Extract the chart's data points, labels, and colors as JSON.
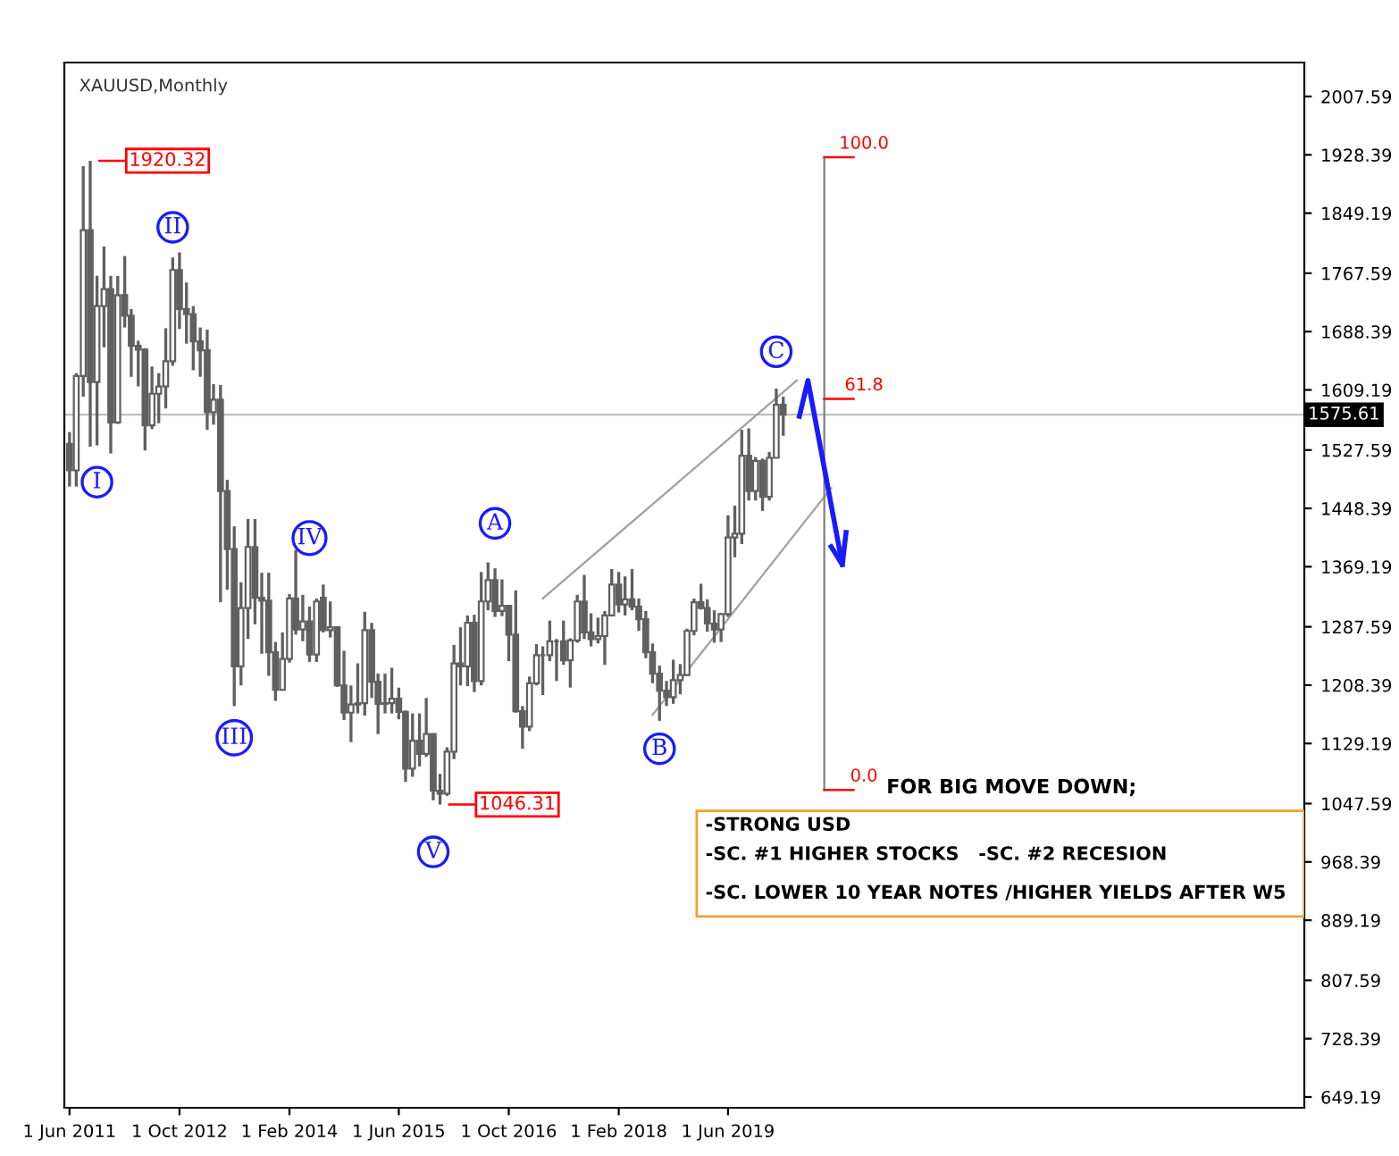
{
  "chart_data": {
    "type": "candlestick",
    "title": "XAUUSD,Monthly",
    "x": [
      "2011-06",
      "2011-07",
      "2011-08",
      "2011-09",
      "2011-10",
      "2011-11",
      "2011-12",
      "2012-01",
      "2012-02",
      "2012-03",
      "2012-04",
      "2012-05",
      "2012-06",
      "2012-07",
      "2012-08",
      "2012-09",
      "2012-10",
      "2012-11",
      "2012-12",
      "2013-01",
      "2013-02",
      "2013-03",
      "2013-04",
      "2013-05",
      "2013-06",
      "2013-07",
      "2013-08",
      "2013-09",
      "2013-10",
      "2013-11",
      "2013-12",
      "2014-01",
      "2014-02",
      "2014-03",
      "2014-04",
      "2014-05",
      "2014-06",
      "2014-07",
      "2014-08",
      "2014-09",
      "2014-10",
      "2014-11",
      "2014-12",
      "2015-01",
      "2015-02",
      "2015-03",
      "2015-04",
      "2015-05",
      "2015-06",
      "2015-07",
      "2015-08",
      "2015-09",
      "2015-10",
      "2015-11",
      "2015-12",
      "2016-01",
      "2016-02",
      "2016-03",
      "2016-04",
      "2016-05",
      "2016-06",
      "2016-07",
      "2016-08",
      "2016-09",
      "2016-10",
      "2016-11",
      "2016-12",
      "2017-01",
      "2017-02",
      "2017-03",
      "2017-04",
      "2017-05",
      "2017-06",
      "2017-07",
      "2017-08",
      "2017-09",
      "2017-10",
      "2017-11",
      "2017-12",
      "2018-01",
      "2018-02",
      "2018-03",
      "2018-04",
      "2018-05",
      "2018-06",
      "2018-07",
      "2018-08",
      "2018-09",
      "2018-10",
      "2018-11",
      "2018-12",
      "2019-01",
      "2019-02",
      "2019-03",
      "2019-04",
      "2019-05",
      "2019-06",
      "2019-07",
      "2019-08",
      "2019-09",
      "2019-10",
      "2019-11",
      "2019-12",
      "2020-01",
      "2020-02"
    ],
    "ohlc": [
      [
        1536,
        1552,
        1478,
        1500
      ],
      [
        1500,
        1632,
        1478,
        1628
      ],
      [
        1628,
        1913,
        1600,
        1826
      ],
      [
        1826,
        1920.32,
        1532,
        1620
      ],
      [
        1620,
        1764,
        1534,
        1723
      ],
      [
        1723,
        1804,
        1667,
        1746
      ],
      [
        1746,
        1764,
        1523,
        1565
      ],
      [
        1565,
        1764,
        1563,
        1738
      ],
      [
        1738,
        1791,
        1694,
        1710
      ],
      [
        1710,
        1719,
        1627,
        1669
      ],
      [
        1669,
        1676,
        1614,
        1664
      ],
      [
        1664,
        1666,
        1527,
        1561
      ],
      [
        1561,
        1641,
        1556,
        1604
      ],
      [
        1604,
        1632,
        1564,
        1614
      ],
      [
        1614,
        1693,
        1584,
        1648
      ],
      [
        1648,
        1789,
        1642,
        1772
      ],
      [
        1772,
        1796,
        1692,
        1719
      ],
      [
        1719,
        1755,
        1672,
        1712
      ],
      [
        1712,
        1723,
        1636,
        1675
      ],
      [
        1675,
        1694,
        1627,
        1663
      ],
      [
        1663,
        1691,
        1555,
        1579
      ],
      [
        1579,
        1617,
        1562,
        1596
      ],
      [
        1596,
        1616,
        1321,
        1472
      ],
      [
        1472,
        1487,
        1338,
        1393
      ],
      [
        1393,
        1424,
        1180,
        1234
      ],
      [
        1234,
        1348,
        1208,
        1313
      ],
      [
        1313,
        1434,
        1271,
        1396
      ],
      [
        1396,
        1434,
        1291,
        1327
      ],
      [
        1327,
        1361,
        1251,
        1323
      ],
      [
        1323,
        1361,
        1221,
        1253
      ],
      [
        1253,
        1267,
        1187,
        1202
      ],
      [
        1202,
        1280,
        1202,
        1244
      ],
      [
        1244,
        1332,
        1239,
        1326
      ],
      [
        1326,
        1392,
        1277,
        1284
      ],
      [
        1284,
        1331,
        1268,
        1295
      ],
      [
        1295,
        1315,
        1240,
        1250
      ],
      [
        1250,
        1326,
        1240,
        1322
      ],
      [
        1327,
        1345,
        1280,
        1283
      ],
      [
        1283,
        1322,
        1273,
        1287
      ],
      [
        1287,
        1288,
        1206,
        1208
      ],
      [
        1208,
        1255,
        1161,
        1171
      ],
      [
        1171,
        1208,
        1131,
        1182
      ],
      [
        1182,
        1238,
        1170,
        1184
      ],
      [
        1184,
        1308,
        1167,
        1283
      ],
      [
        1283,
        1293,
        1191,
        1213
      ],
      [
        1213,
        1224,
        1142,
        1183
      ],
      [
        1183,
        1224,
        1170,
        1184
      ],
      [
        1184,
        1232,
        1170,
        1190
      ],
      [
        1190,
        1205,
        1162,
        1172
      ],
      [
        1172,
        1174,
        1077,
        1095
      ],
      [
        1095,
        1170,
        1084,
        1133
      ],
      [
        1133,
        1170,
        1098,
        1115
      ],
      [
        1115,
        1191,
        1111,
        1142
      ],
      [
        1142,
        1142,
        1052,
        1065
      ],
      [
        1065,
        1088,
        1046.31,
        1061
      ],
      [
        1061,
        1124,
        1058,
        1118
      ],
      [
        1118,
        1263,
        1108,
        1238
      ],
      [
        1238,
        1287,
        1208,
        1234
      ],
      [
        1234,
        1303,
        1207,
        1293
      ],
      [
        1293,
        1304,
        1199,
        1214
      ],
      [
        1214,
        1362,
        1208,
        1322
      ],
      [
        1322,
        1375,
        1310,
        1351
      ],
      [
        1351,
        1367,
        1301,
        1309
      ],
      [
        1309,
        1352,
        1302,
        1316
      ],
      [
        1316,
        1317,
        1241,
        1277
      ],
      [
        1277,
        1337,
        1171,
        1173
      ],
      [
        1173,
        1180,
        1122,
        1152
      ],
      [
        1152,
        1220,
        1146,
        1211
      ],
      [
        1211,
        1264,
        1208,
        1249
      ],
      [
        1249,
        1261,
        1195,
        1249
      ],
      [
        1249,
        1296,
        1241,
        1268
      ],
      [
        1268,
        1271,
        1214,
        1268
      ],
      [
        1268,
        1296,
        1236,
        1242
      ],
      [
        1242,
        1272,
        1205,
        1269
      ],
      [
        1269,
        1331,
        1266,
        1322
      ],
      [
        1322,
        1358,
        1271,
        1280
      ],
      [
        1280,
        1306,
        1261,
        1271
      ],
      [
        1271,
        1300,
        1265,
        1275
      ],
      [
        1275,
        1309,
        1236,
        1303
      ],
      [
        1303,
        1366,
        1302,
        1345
      ],
      [
        1345,
        1362,
        1307,
        1318
      ],
      [
        1318,
        1356,
        1303,
        1325
      ],
      [
        1325,
        1366,
        1310,
        1315
      ],
      [
        1315,
        1326,
        1282,
        1298
      ],
      [
        1298,
        1309,
        1245,
        1253
      ],
      [
        1253,
        1265,
        1211,
        1224
      ],
      [
        1224,
        1235,
        1160,
        1201
      ],
      [
        1201,
        1214,
        1180,
        1192
      ],
      [
        1192,
        1243,
        1183,
        1215
      ],
      [
        1215,
        1237,
        1196,
        1222
      ],
      [
        1222,
        1285,
        1221,
        1282
      ],
      [
        1282,
        1326,
        1276,
        1321
      ],
      [
        1321,
        1346,
        1311,
        1313
      ],
      [
        1313,
        1325,
        1281,
        1292
      ],
      [
        1292,
        1310,
        1266,
        1284
      ],
      [
        1284,
        1306,
        1267,
        1305
      ],
      [
        1305,
        1439,
        1301,
        1409
      ],
      [
        1409,
        1452,
        1382,
        1414
      ],
      [
        1414,
        1555,
        1400,
        1520
      ],
      [
        1520,
        1557,
        1459,
        1472
      ],
      [
        1472,
        1518,
        1459,
        1513
      ],
      [
        1513,
        1516,
        1445,
        1464
      ],
      [
        1464,
        1525,
        1459,
        1517
      ],
      [
        1517,
        1611,
        1517,
        1589
      ],
      [
        1589,
        1600,
        1547,
        1575.61
      ]
    ],
    "color": "#606060",
    "series": [
      {
        "type": "line",
        "color": "#a0a0a0",
        "x": [
          "2017-03",
          "2020-04"
        ],
        "values": [
          1326,
          1622
        ]
      },
      {
        "type": "line",
        "color": "#a0a0a0",
        "x": [
          "2018-07",
          "2020-09"
        ],
        "values": [
          1168,
          1476
        ]
      },
      {
        "type": "line",
        "color": "#808080",
        "x": [
          "2020-08",
          "2020-08"
        ],
        "values": [
          1066,
          1925
        ]
      }
    ],
    "ref_lines": [
      {
        "axis": "y",
        "value": 1575.61,
        "label": "1575.61",
        "color": "#c0c0c0"
      }
    ],
    "xlim": [
      "2011-05-09",
      "2026-06-01"
    ],
    "xticks": [
      {
        "value": "2011-06-01",
        "label": "1 Jun 2011"
      },
      {
        "value": "2012-10-01",
        "label": "1 Oct 2012"
      },
      {
        "value": "2014-02-01",
        "label": "1 Feb 2014"
      },
      {
        "value": "2015-06-01",
        "label": "1 Jun 2015"
      },
      {
        "value": "2016-10-01",
        "label": "1 Oct 2016"
      },
      {
        "value": "2018-02-01",
        "label": "1 Feb 2018"
      },
      {
        "value": "2019-06-01",
        "label": "1 Jun 2019"
      }
    ],
    "ylim": [
      634.6,
      2053.7
    ],
    "yticks": [
      {
        "value": 2007.59,
        "label": "2007.59"
      },
      {
        "value": 1928.39,
        "label": "1928.39"
      },
      {
        "value": 1849.19,
        "label": "1849.19"
      },
      {
        "value": 1767.59,
        "label": "1767.59"
      },
      {
        "value": 1688.39,
        "label": "1688.39"
      },
      {
        "value": 1609.19,
        "label": "1609.19"
      },
      {
        "value": 1527.59,
        "label": "1527.59"
      },
      {
        "value": 1448.39,
        "label": "1448.39"
      },
      {
        "value": 1369.19,
        "label": "1369.19"
      },
      {
        "value": 1287.59,
        "label": "1287.59"
      },
      {
        "value": 1208.39,
        "label": "1208.39"
      },
      {
        "value": 1129.19,
        "label": "1129.19"
      },
      {
        "value": 1047.59,
        "label": "1047.59"
      },
      {
        "value": 968.39,
        "label": "968.39"
      },
      {
        "value": 889.19,
        "label": "889.19"
      },
      {
        "value": 807.59,
        "label": "807.59"
      },
      {
        "value": 728.39,
        "label": "728.39"
      },
      {
        "value": 649.19,
        "label": "649.19"
      }
    ],
    "grid": false,
    "annotations": [
      {
        "text": "I",
        "x": "2011-10",
        "y": 1484
      },
      {
        "text": "II",
        "x": "2012-09",
        "y": 1830
      },
      {
        "text": "III",
        "x": "2013-06",
        "y": 1137
      },
      {
        "text": "IV",
        "x": "2014-05",
        "y": 1408
      },
      {
        "text": "V",
        "x": "2015-11",
        "y": 982
      },
      {
        "text": "A",
        "x": "2016-08",
        "y": 1428
      },
      {
        "text": "B",
        "x": "2018-08",
        "y": 1122
      },
      {
        "text": "C",
        "x": "2020-01",
        "y": 1661
      },
      {
        "text": "1920.32",
        "x": "2011-09",
        "y": 1920.32
      },
      {
        "text": "1046.31",
        "x": "2015-12",
        "y": 1046.31
      },
      {
        "text": "100.0",
        "x": "2020-08",
        "y": 1925
      },
      {
        "text": "61.8",
        "x": "2020-08",
        "y": 1597
      },
      {
        "text": "0.0",
        "x": "2020-08",
        "y": 1066
      },
      "FOR BIG MOVE DOWN;",
      "-STRONG USD",
      "-SC. #1 HIGHER STOCKS   -SC. #2 RECESION",
      "-SC. LOWER 10 YEAR NOTES /HIGHER YIELDS AFTER W5"
    ]
  }
}
